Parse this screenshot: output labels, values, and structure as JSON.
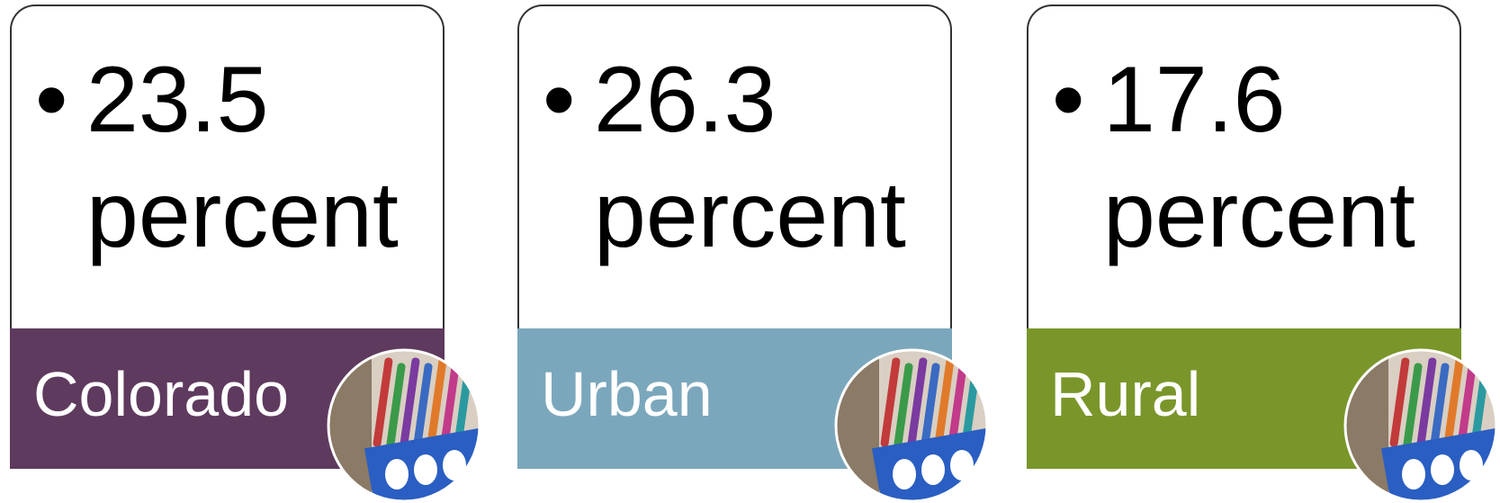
{
  "cards": [
    {
      "stat": "23.5 percent",
      "label": "Colorado",
      "color": "#5e3a5e"
    },
    {
      "stat": "26.3 percent",
      "label": "Urban",
      "color": "#7ba7bc"
    },
    {
      "stat": "17.6 percent",
      "label": "Rural",
      "color": "#7a962a"
    }
  ]
}
